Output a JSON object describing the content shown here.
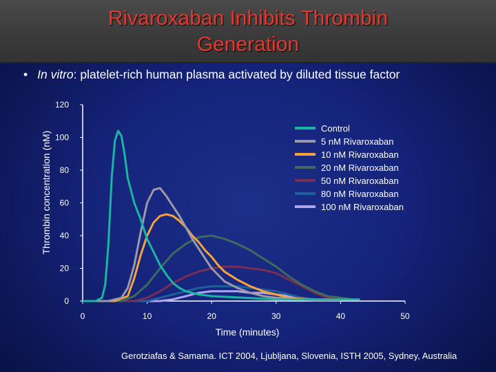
{
  "slide": {
    "title_line1": "Rivaroxaban Inhibits Thrombin",
    "title_line2": "Generation",
    "bullet_symbol": "•",
    "bullet_italic": "In vitro",
    "bullet_rest": ": platelet-rich human plasma activated by diluted tissue factor",
    "citation": "Gerotziafas & Samama. ICT 2004, Ljubljana, Slovenia, ISTH 2005, Sydney, Australia"
  },
  "chart_data": {
    "type": "line",
    "xlabel": "Time (minutes)",
    "ylabel": "Thrombin concentration (nM)",
    "xlim": [
      0,
      50
    ],
    "ylim": [
      0,
      120
    ],
    "xticks": [
      0,
      10,
      20,
      30,
      40,
      50
    ],
    "yticks": [
      0,
      20,
      40,
      60,
      80,
      100,
      120
    ],
    "grid": false,
    "legend_position": "top-right",
    "series": [
      {
        "name": "Control",
        "color": "#1bb5a3",
        "x": [
          0,
          2,
          3,
          3.5,
          4,
          4.5,
          5,
          5.5,
          6,
          6.5,
          7,
          8,
          9,
          10,
          11,
          12,
          13,
          14,
          15,
          16,
          18,
          20,
          25,
          30,
          35,
          40,
          43
        ],
        "y": [
          0,
          0,
          2,
          10,
          35,
          75,
          98,
          104,
          101,
          90,
          75,
          60,
          50,
          38,
          30,
          22,
          16,
          11,
          8,
          6,
          4,
          3,
          2,
          1,
          1,
          1,
          1
        ]
      },
      {
        "name": "5 nM Rivaroxaban",
        "color": "#9a9aa8",
        "x": [
          0,
          4,
          6,
          7,
          8,
          9,
          10,
          11,
          12,
          13,
          14,
          15,
          16,
          17,
          18,
          19,
          20,
          22,
          24,
          26,
          28,
          30,
          33,
          36,
          40
        ],
        "y": [
          0,
          0,
          2,
          8,
          22,
          42,
          60,
          68,
          69,
          64,
          58,
          52,
          45,
          38,
          32,
          26,
          20,
          12,
          8,
          5,
          3,
          2,
          1,
          0.5,
          0.5
        ]
      },
      {
        "name": "10 nM Rivaroxaban",
        "color": "#f7a23a",
        "x": [
          0,
          5,
          7,
          8,
          9,
          10,
          11,
          12,
          13,
          14,
          15,
          16,
          17,
          18,
          19,
          20,
          21,
          22,
          24,
          26,
          28,
          30,
          32,
          35,
          38,
          40
        ],
        "y": [
          0,
          0,
          3,
          14,
          28,
          40,
          48,
          52,
          53,
          52,
          49,
          45,
          40,
          36,
          31,
          27,
          22,
          18,
          13,
          9,
          6,
          4,
          2,
          1,
          1,
          0.5
        ]
      },
      {
        "name": "20 nM Rivaroxaban",
        "color": "#3f6b5d",
        "x": [
          0,
          6,
          8,
          10,
          12,
          14,
          16,
          18,
          20,
          22,
          24,
          26,
          28,
          30,
          32,
          34,
          36,
          38,
          40,
          42
        ],
        "y": [
          0,
          0,
          3,
          10,
          20,
          29,
          35,
          39,
          40,
          38,
          35,
          31,
          26,
          21,
          15,
          10,
          6,
          3,
          2,
          1
        ]
      },
      {
        "name": "50 nM Rivaroxaban",
        "color": "#7a2e55",
        "x": [
          0,
          8,
          10,
          12,
          14,
          16,
          18,
          20,
          22,
          24,
          26,
          28,
          30,
          32,
          34,
          36,
          38,
          40
        ],
        "y": [
          0,
          0,
          2,
          6,
          11,
          15,
          18,
          20,
          21,
          21,
          20,
          19,
          17,
          13,
          9,
          5,
          2,
          1
        ]
      },
      {
        "name": "80 nM Rivaroxaban",
        "color": "#1f5f9e",
        "x": [
          0,
          10,
          12,
          14,
          16,
          18,
          20,
          22,
          24,
          26,
          28,
          30,
          32,
          34,
          36,
          38
        ],
        "y": [
          0,
          0,
          2,
          4,
          6,
          8,
          9,
          9,
          9,
          8,
          7,
          6,
          4,
          2,
          1,
          0.5
        ]
      },
      {
        "name": "100 nM Rivaroxaban",
        "color": "#b0a6ee",
        "x": [
          0,
          12,
          14,
          16,
          18,
          20,
          22,
          24,
          26,
          28,
          30,
          32,
          34,
          36,
          38
        ],
        "y": [
          0,
          0,
          1,
          3,
          5,
          6,
          6,
          6,
          5,
          5,
          4,
          3,
          2,
          1,
          0.5
        ]
      }
    ]
  }
}
